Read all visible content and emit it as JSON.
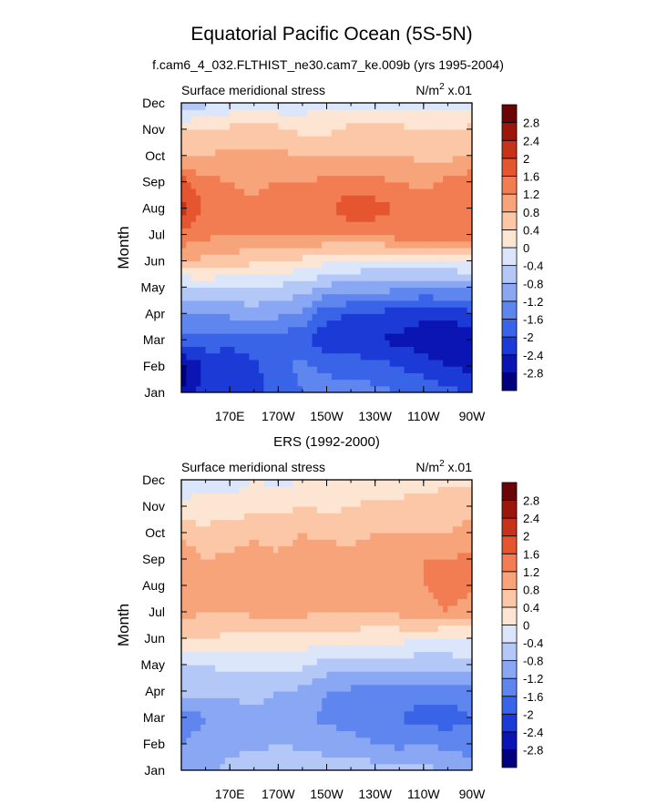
{
  "figure": {
    "title": "Equatorial Pacific Ocean (5S-5N)",
    "subtitle": "f.cam6_4_032.FLTHIST_ne30.cam7_ke.009b (yrs 1995-2004)"
  },
  "colorbar": {
    "levels": [
      -2.8,
      -2.4,
      -2.0,
      -1.6,
      -1.2,
      -0.8,
      -0.4,
      0.0,
      0.4,
      0.8,
      1.2,
      1.6,
      2.0,
      2.4,
      2.8
    ],
    "labels": [
      "-2.8",
      "-2.4",
      "-2",
      "-1.6",
      "-1.2",
      "-0.8",
      "-0.4",
      "0",
      "0.4",
      "0.8",
      "1.2",
      "1.6",
      "2",
      "2.4",
      "2.8"
    ],
    "colors": [
      "#01007f",
      "#0a15b3",
      "#1c3ad6",
      "#3a64e7",
      "#5f86ef",
      "#89a7f3",
      "#b3c8f6",
      "#dbe6fb",
      "#fde5d3",
      "#fbc7a6",
      "#f8a47a",
      "#f27d52",
      "#e5552f",
      "#c5331a",
      "#9b170b",
      "#6b0505"
    ]
  },
  "chart_data": [
    {
      "type": "heatmap",
      "title": "",
      "left_string": "Surface meridional stress",
      "right_string": "N/m",
      "right_sup": "2",
      "right_suffix": " x.01",
      "xlabel": "",
      "ylabel": "Month",
      "xlim": [
        150,
        270
      ],
      "ylim": [
        1,
        12
      ],
      "x_ticks": [
        170,
        190,
        210,
        230,
        250,
        270
      ],
      "x_tick_labels": [
        "170E",
        "170W",
        "150W",
        "130W",
        "110W",
        "90W"
      ],
      "y_tick_labels": [
        "Jan",
        "Feb",
        "Mar",
        "Apr",
        "May",
        "Jun",
        "Jul",
        "Aug",
        "Sep",
        "Oct",
        "Nov",
        "Dec"
      ],
      "lons": [
        150,
        160,
        170,
        180,
        190,
        200,
        210,
        220,
        230,
        240,
        250,
        260,
        270
      ],
      "values": [
        [
          -2.8,
          -2.2,
          -2.1,
          -2.1,
          -1.9,
          -1.6,
          -1.4,
          -1.4,
          -1.5,
          -1.6,
          -1.7,
          -1.9,
          -2.0
        ],
        [
          -3.0,
          -2.3,
          -2.2,
          -2.1,
          -1.7,
          -1.5,
          -1.7,
          -1.8,
          -1.8,
          -2.0,
          -2.2,
          -2.4,
          -2.5
        ],
        [
          -1.7,
          -1.8,
          -1.9,
          -1.8,
          -1.8,
          -1.9,
          -2.3,
          -2.3,
          -2.4,
          -2.5,
          -2.6,
          -2.8,
          -2.8
        ],
        [
          -1.3,
          -1.2,
          -1.1,
          -1.0,
          -1.1,
          -1.3,
          -1.9,
          -2.0,
          -2.1,
          -2.2,
          -2.3,
          -2.2,
          -2.1
        ],
        [
          -0.5,
          -0.4,
          -0.4,
          -0.4,
          -0.5,
          -0.6,
          -0.9,
          -1.0,
          -1.0,
          -1.1,
          -1.2,
          -1.2,
          -1.1
        ],
        [
          0.8,
          0.7,
          0.6,
          0.5,
          0.4,
          0.3,
          0.1,
          0.0,
          -0.1,
          -0.1,
          0.0,
          0.0,
          0.1
        ],
        [
          1.5,
          1.3,
          1.2,
          1.2,
          1.3,
          1.2,
          1.2,
          1.2,
          1.3,
          1.4,
          1.5,
          1.5,
          1.5
        ],
        [
          2.2,
          1.5,
          1.3,
          1.3,
          1.6,
          1.5,
          1.5,
          1.9,
          1.8,
          1.5,
          1.4,
          1.3,
          1.4
        ],
        [
          1.8,
          1.3,
          1.2,
          1.1,
          1.2,
          1.2,
          1.3,
          1.4,
          1.3,
          1.2,
          1.1,
          1.3,
          1.5
        ],
        [
          0.7,
          0.8,
          0.9,
          0.9,
          0.9,
          0.8,
          0.8,
          0.8,
          0.8,
          0.8,
          0.7,
          0.7,
          0.8
        ],
        [
          0.4,
          0.4,
          0.5,
          0.6,
          0.5,
          0.3,
          0.3,
          0.5,
          0.5,
          0.5,
          0.4,
          0.4,
          0.5
        ],
        [
          -0.8,
          -0.5,
          -0.3,
          -0.3,
          -0.3,
          -0.2,
          -0.1,
          -0.1,
          -0.1,
          -0.1,
          -0.1,
          -0.1,
          -0.2
        ]
      ]
    },
    {
      "type": "heatmap",
      "title": "ERS (1992-2000)",
      "left_string": "Surface meridional stress",
      "right_string": "N/m",
      "right_sup": "2",
      "right_suffix": " x.01",
      "xlabel": "",
      "ylabel": "Month",
      "xlim": [
        150,
        270
      ],
      "ylim": [
        1,
        12
      ],
      "x_ticks": [
        170,
        190,
        210,
        230,
        250,
        270
      ],
      "x_tick_labels": [
        "170E",
        "170W",
        "150W",
        "130W",
        "110W",
        "90W"
      ],
      "y_tick_labels": [
        "Jan",
        "Feb",
        "Mar",
        "Apr",
        "May",
        "Jun",
        "Jul",
        "Aug",
        "Sep",
        "Oct",
        "Nov",
        "Dec"
      ],
      "lons": [
        150,
        160,
        170,
        180,
        190,
        200,
        210,
        220,
        230,
        240,
        250,
        260,
        270
      ],
      "values": [
        [
          -1.0,
          -0.9,
          -0.7,
          -0.5,
          -0.5,
          -0.4,
          -0.5,
          -0.5,
          -0.6,
          -0.6,
          -0.7,
          -0.8,
          -0.9
        ],
        [
          -1.2,
          -1.0,
          -0.9,
          -0.9,
          -0.8,
          -0.9,
          -1.0,
          -1.1,
          -1.2,
          -1.3,
          -1.2,
          -1.3,
          -1.5
        ],
        [
          -1.5,
          -1.2,
          -1.1,
          -0.9,
          -1.2,
          -1.1,
          -1.3,
          -1.3,
          -1.4,
          -1.6,
          -1.8,
          -1.8,
          -1.6
        ],
        [
          -0.7,
          -0.7,
          -0.7,
          -0.6,
          -0.8,
          -0.9,
          -1.2,
          -1.3,
          -1.4,
          -1.4,
          -1.4,
          -1.4,
          -1.3
        ],
        [
          -0.4,
          -0.4,
          -0.3,
          -0.3,
          -0.3,
          -0.3,
          -0.6,
          -0.5,
          -0.6,
          -0.6,
          -0.7,
          -0.6,
          -0.5
        ],
        [
          0.5,
          0.4,
          0.3,
          0.3,
          0.3,
          0.2,
          0.3,
          0.2,
          0.1,
          0.1,
          0.0,
          -0.1,
          0.0
        ],
        [
          0.9,
          0.8,
          0.8,
          0.9,
          0.9,
          0.9,
          0.8,
          0.8,
          0.8,
          0.9,
          1.1,
          1.2,
          1.0
        ],
        [
          1.0,
          0.8,
          0.9,
          0.9,
          1.0,
          0.9,
          0.9,
          0.9,
          0.9,
          0.9,
          1.2,
          1.3,
          1.3
        ],
        [
          1.2,
          0.8,
          0.9,
          1.0,
          0.9,
          1.0,
          1.0,
          0.9,
          1.0,
          1.0,
          1.2,
          1.2,
          1.3
        ],
        [
          0.6,
          0.5,
          0.6,
          0.7,
          0.6,
          0.8,
          0.7,
          0.7,
          0.8,
          0.8,
          0.8,
          0.8,
          0.9
        ],
        [
          0.1,
          0.2,
          0.2,
          0.3,
          0.3,
          0.4,
          0.3,
          0.4,
          0.5,
          0.5,
          0.6,
          0.7,
          0.7
        ],
        [
          -0.3,
          -0.2,
          -0.2,
          0.0,
          -0.1,
          0.0,
          0.0,
          0.0,
          0.1,
          0.2,
          0.2,
          0.3,
          0.3
        ]
      ]
    }
  ]
}
